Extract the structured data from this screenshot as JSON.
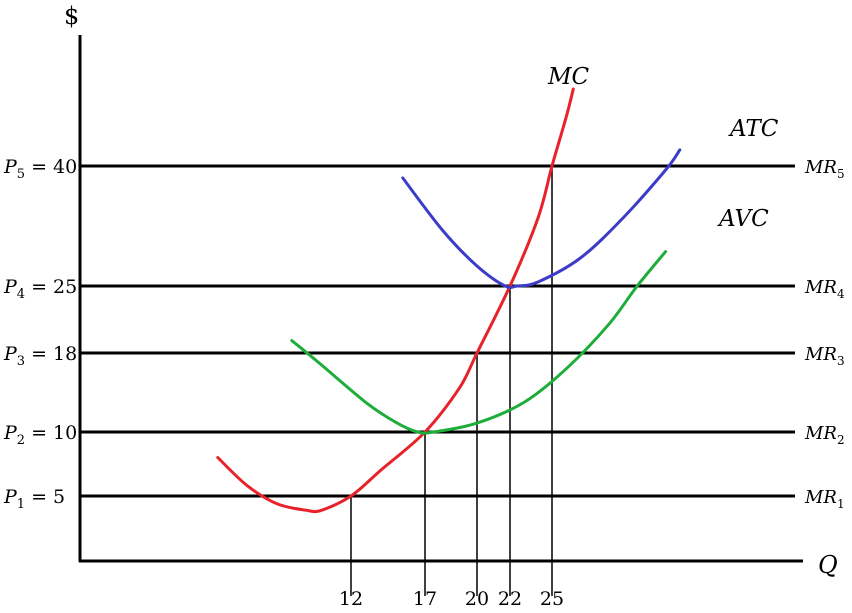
{
  "chart_data": {
    "type": "line",
    "title": "",
    "xlabel": "Q",
    "ylabel": "$",
    "grid": false,
    "legend": "none",
    "x_ticks": [
      12,
      17,
      20,
      22,
      25
    ],
    "price_levels": [
      {
        "price_label": "P",
        "price_sub": "5",
        "price_value": "= 40",
        "mr_label": "MR",
        "mr_sub": "5",
        "y": 40
      },
      {
        "price_label": "P",
        "price_sub": "4",
        "price_value": "= 25",
        "mr_label": "MR",
        "mr_sub": "4",
        "y": 25
      },
      {
        "price_label": "P",
        "price_sub": "3",
        "price_value": "= 18",
        "mr_label": "MR",
        "mr_sub": "3",
        "y": 18
      },
      {
        "price_label": "P",
        "price_sub": "2",
        "price_value": "= 10",
        "mr_label": "MR",
        "mr_sub": "2",
        "y": 10
      },
      {
        "price_label": "P",
        "price_sub": "1",
        "price_value": "= 5",
        "mr_label": "MR",
        "mr_sub": "1",
        "y": 5
      }
    ],
    "intersections": [
      {
        "x": 12,
        "y": 5
      },
      {
        "x": 17,
        "y": 10
      },
      {
        "x": 20,
        "y": 18
      },
      {
        "x": 22,
        "y": 25
      },
      {
        "x": 25,
        "y": 40
      }
    ],
    "series": [
      {
        "name": "MC",
        "color": "#e8222a",
        "points": [
          [
            3,
            8
          ],
          [
            5,
            5.8
          ],
          [
            7,
            4.4
          ],
          [
            9,
            3.9
          ],
          [
            10,
            3.9
          ],
          [
            12,
            5
          ],
          [
            14,
            7
          ],
          [
            17,
            10
          ],
          [
            19,
            14.5
          ],
          [
            20,
            18
          ],
          [
            22,
            25
          ],
          [
            24,
            33.5
          ],
          [
            25,
            40
          ],
          [
            26,
            47
          ],
          [
            26.5,
            51
          ]
        ]
      },
      {
        "name": "ATC",
        "color": "#3c3cc8",
        "points": [
          [
            15.5,
            38.5
          ],
          [
            18,
            32
          ],
          [
            20,
            27.5
          ],
          [
            21.7,
            25
          ],
          [
            22.5,
            25
          ],
          [
            24,
            25.5
          ],
          [
            27,
            28.5
          ],
          [
            30,
            33.5
          ],
          [
            33,
            39.5
          ],
          [
            34,
            42.3
          ]
        ]
      },
      {
        "name": "AVC",
        "color": "#1fad3a",
        "points": [
          [
            8,
            19.3
          ],
          [
            10,
            16.8
          ],
          [
            13,
            13
          ],
          [
            15,
            11
          ],
          [
            16.5,
            10
          ],
          [
            17.5,
            10
          ],
          [
            20,
            10.9
          ],
          [
            23,
            13
          ],
          [
            26,
            16.4
          ],
          [
            29,
            21
          ],
          [
            31,
            25
          ],
          [
            33,
            29.3
          ]
        ]
      }
    ]
  }
}
